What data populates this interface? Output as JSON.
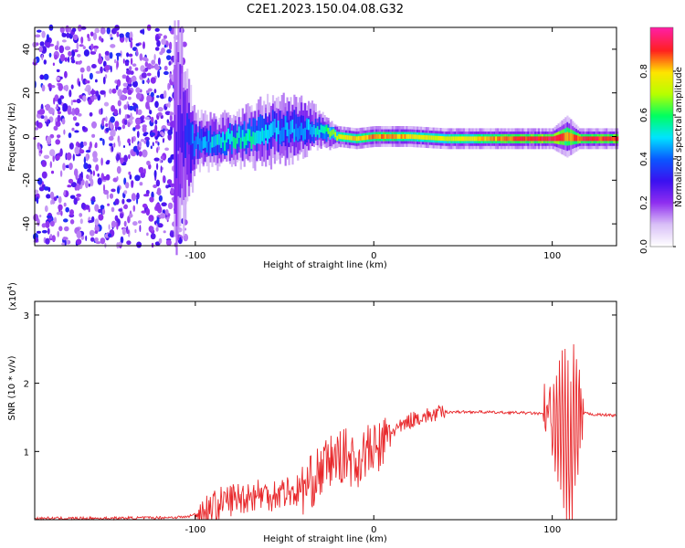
{
  "title": "C2E1.2023.150.04.08.G32",
  "colors": {
    "snr_line": "#e8272a",
    "frame": "#000000"
  },
  "colormap": [
    "#ffffff",
    "#d9bff7",
    "#8f2ef0",
    "#3a10f0",
    "#0a58ff",
    "#00e4ff",
    "#00ff60",
    "#b8ff00",
    "#ffe400",
    "#ff2020",
    "#ff1fa0"
  ],
  "chart_data": [
    {
      "type": "heatmap",
      "xlabel": "Height of straight line (km)",
      "ylabel": "Frequency (Hz)",
      "xlim": [
        -190,
        136
      ],
      "ylim": [
        -50,
        50
      ],
      "xticks": [
        -100,
        0,
        100
      ],
      "yticks": [
        -40,
        -20,
        0,
        20,
        40
      ],
      "colorbar": {
        "label": "Normalized spectral amplitude",
        "range": [
          0.0,
          1.0
        ],
        "ticks": [
          "0.0",
          "0.2",
          "0.4",
          "0.6",
          "0.8"
        ]
      },
      "series": [
        {
          "description_keys": [
            "x",
            "freq",
            "spread",
            "amplitude"
          ],
          "x": [
            -190,
            -160,
            -130,
            -110,
            -100,
            -90,
            -80,
            -70,
            -60,
            -50,
            -40,
            -30,
            -20,
            -10,
            0,
            10,
            20,
            40,
            60,
            70,
            80,
            90,
            100,
            108,
            115,
            125,
            136
          ],
          "freq": [
            10,
            15,
            8,
            2,
            -3,
            -2,
            -1,
            0,
            2,
            3,
            4,
            3,
            0,
            -1,
            0,
            0,
            0,
            -1,
            -1,
            -1,
            -1,
            -1,
            -1,
            0,
            -1,
            -1,
            -1
          ],
          "spread": [
            40,
            40,
            40,
            30,
            8,
            7,
            7,
            8,
            9,
            9,
            8,
            5,
            3,
            3,
            3,
            3,
            3,
            3,
            3,
            3,
            3,
            3,
            3,
            6,
            3,
            3,
            3
          ],
          "amplitude": [
            0.2,
            0.2,
            0.2,
            0.25,
            0.45,
            0.5,
            0.55,
            0.55,
            0.5,
            0.45,
            0.45,
            0.55,
            0.75,
            0.8,
            0.85,
            0.85,
            0.8,
            0.75,
            0.8,
            0.85,
            0.9,
            0.9,
            0.95,
            0.85,
            0.9,
            0.9,
            0.9
          ]
        }
      ]
    },
    {
      "type": "line",
      "xlabel": "Height of straight line (km)",
      "ylabel": "SNR (10 * v/v)",
      "yscale_label": "(x10^4)",
      "yscale_base": "(x10",
      "yscale_exp": "4",
      "yscale_close": ")",
      "xlim": [
        -190,
        136
      ],
      "ylim": [
        0,
        3.2
      ],
      "xticks": [
        -100,
        0,
        100
      ],
      "yticks": [
        1,
        2,
        3
      ],
      "series": [
        {
          "x": [
            -190,
            -150,
            -120,
            -105,
            -100,
            -95,
            -90,
            -85,
            -80,
            -75,
            -70,
            -65,
            -60,
            -55,
            -50,
            -45,
            -40,
            -35,
            -30,
            -25,
            -20,
            -15,
            -10,
            -5,
            0,
            5,
            10,
            15,
            20,
            25,
            30,
            35,
            40,
            50,
            60,
            70,
            80,
            90,
            98,
            102,
            105,
            108,
            110,
            112,
            114,
            118,
            125,
            136
          ],
          "y": [
            0.02,
            0.02,
            0.03,
            0.04,
            0.08,
            0.12,
            0.18,
            0.25,
            0.3,
            0.32,
            0.35,
            0.38,
            0.36,
            0.38,
            0.42,
            0.4,
            0.45,
            0.55,
            0.7,
            0.85,
            0.9,
            0.95,
            0.8,
            1.0,
            1.0,
            1.1,
            1.3,
            1.35,
            1.45,
            1.5,
            1.52,
            1.55,
            1.58,
            1.58,
            1.58,
            1.57,
            1.57,
            1.56,
            1.54,
            1.35,
            1.45,
            1.2,
            0.6,
            1.5,
            1.45,
            1.56,
            1.54,
            1.53
          ]
        }
      ]
    }
  ]
}
